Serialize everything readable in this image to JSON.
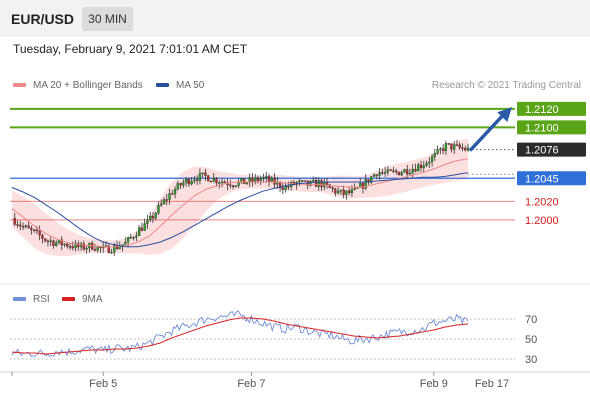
{
  "header": {
    "symbol": "EUR/USD",
    "timeframe": "30 MIN",
    "datetime": "Tuesday, February 9, 2021 7:01:01 AM CET"
  },
  "legend": {
    "ma20_bollinger": {
      "label": "MA 20 + Bollinger Bands",
      "color": "#f08888"
    },
    "ma50": {
      "label": "MA 50",
      "color": "#2a4f9e"
    }
  },
  "source": "Research © 2021 Trading Central",
  "rsi_legend": {
    "rsi": {
      "label": "RSI",
      "color": "#6f8fd8"
    },
    "ma9": {
      "label": "9MA",
      "color": "#d42020"
    }
  },
  "chart_data": {
    "type": "candlestick",
    "price_panel": {
      "y_range": [
        1.1935,
        1.2135
      ],
      "current_price": {
        "label": "1.2076",
        "value": 1.2076,
        "color": "#2b2b2b"
      },
      "levels": [
        {
          "label": "1.2120",
          "value": 1.212,
          "kind": "target",
          "color": "#5aa417"
        },
        {
          "label": "1.2100",
          "value": 1.21,
          "kind": "resistance",
          "color": "#5aa417"
        },
        {
          "label": "1.2045",
          "value": 1.2045,
          "kind": "pivot",
          "color": "#2f6fd8"
        },
        {
          "label": "1.2020",
          "value": 1.202,
          "kind": "support",
          "color": "#d42020"
        },
        {
          "label": "1.2000",
          "value": 1.2,
          "kind": "support",
          "color": "#d42020"
        }
      ],
      "arrow": {
        "direction": "up",
        "from": 1.2076,
        "to": 1.2122,
        "color": "#2a5aa8"
      },
      "close_path": [
        1.2002,
        1.1992,
        1.1986,
        1.1978,
        1.1975,
        1.1973,
        1.197,
        1.1972,
        1.1968,
        1.197,
        1.1975,
        1.1988,
        1.1998,
        1.2015,
        1.203,
        1.204,
        1.2046,
        1.2047,
        1.2043,
        1.204,
        1.204,
        1.2042,
        1.2045,
        1.204,
        1.2035,
        1.204,
        1.2038,
        1.204,
        1.2033,
        1.2028,
        1.203,
        1.204,
        1.2052,
        1.205,
        1.2052,
        1.2055,
        1.206,
        1.2068,
        1.208,
        1.2078,
        1.2076
      ],
      "ma20": [
        1.2012,
        1.2003,
        1.1993,
        1.1985,
        1.1979,
        1.1975,
        1.1973,
        1.1972,
        1.1971,
        1.1971,
        1.1972,
        1.1976,
        1.1982,
        1.1993,
        1.2005,
        1.2016,
        1.2026,
        1.2033,
        1.2037,
        1.204,
        1.2041,
        1.2041,
        1.2041,
        1.2041,
        1.204,
        1.2039,
        1.2038,
        1.2038,
        1.2037,
        1.2036,
        1.2035,
        1.2036,
        1.2039,
        1.2042,
        1.2045,
        1.2048,
        1.2051,
        1.2055,
        1.206,
        1.2064,
        1.2066
      ],
      "bollinger_width": [
        0.002,
        0.0022,
        0.0024,
        0.0022,
        0.0018,
        0.0014,
        0.001,
        0.0008,
        0.0007,
        0.0007,
        0.0008,
        0.0012,
        0.002,
        0.003,
        0.0036,
        0.0036,
        0.0032,
        0.0024,
        0.0016,
        0.0011,
        0.0008,
        0.0007,
        0.0007,
        0.0008,
        0.0008,
        0.0008,
        0.0008,
        0.0008,
        0.001,
        0.0012,
        0.0012,
        0.0012,
        0.0014,
        0.0016,
        0.0016,
        0.0016,
        0.0016,
        0.0017,
        0.002,
        0.0022,
        0.0022
      ],
      "ma50": [
        1.2035,
        1.203,
        1.2024,
        1.2016,
        1.2008,
        1.1999,
        1.199,
        1.1982,
        1.1976,
        1.1973,
        1.1971,
        1.1971,
        1.1973,
        1.1976,
        1.1981,
        1.1987,
        1.1994,
        1.2001,
        1.2008,
        1.2015,
        1.2021,
        1.2026,
        1.2031,
        1.2034,
        1.2037,
        1.2039,
        1.204,
        1.2041,
        1.2041,
        1.2041,
        1.2041,
        1.2041,
        1.2042,
        1.2043,
        1.2044,
        1.2045,
        1.2046,
        1.2046,
        1.2047,
        1.2049,
        1.2051
      ]
    },
    "rsi_panel": {
      "y_range": [
        20,
        80
      ],
      "ticks": [
        {
          "label": "70",
          "value": 70
        },
        {
          "label": "50",
          "value": 50
        },
        {
          "label": "30",
          "value": 30
        }
      ],
      "rsi": [
        36,
        35,
        36,
        35,
        38,
        37,
        39,
        40,
        38,
        41,
        40,
        42,
        46,
        52,
        58,
        62,
        66,
        70,
        72,
        73,
        74,
        70,
        66,
        62,
        60,
        62,
        58,
        55,
        54,
        50,
        48,
        50,
        52,
        55,
        57,
        58,
        60,
        66,
        68,
        70,
        66
      ],
      "ma9": [
        37,
        36,
        36,
        35,
        36,
        37,
        38,
        39,
        39,
        40,
        40,
        41,
        43,
        46,
        51,
        55,
        59,
        63,
        66,
        69,
        71,
        71,
        70,
        68,
        65,
        63,
        61,
        59,
        57,
        55,
        53,
        52,
        51,
        52,
        53,
        55,
        57,
        59,
        62,
        64,
        65
      ]
    },
    "x_axis": {
      "ticks": [
        {
          "label": "Feb 5",
          "index": 8
        },
        {
          "label": "Feb 7",
          "index": 21
        },
        {
          "label": "Feb 9",
          "index": 37
        }
      ],
      "extra_tick": "Feb 17"
    }
  }
}
